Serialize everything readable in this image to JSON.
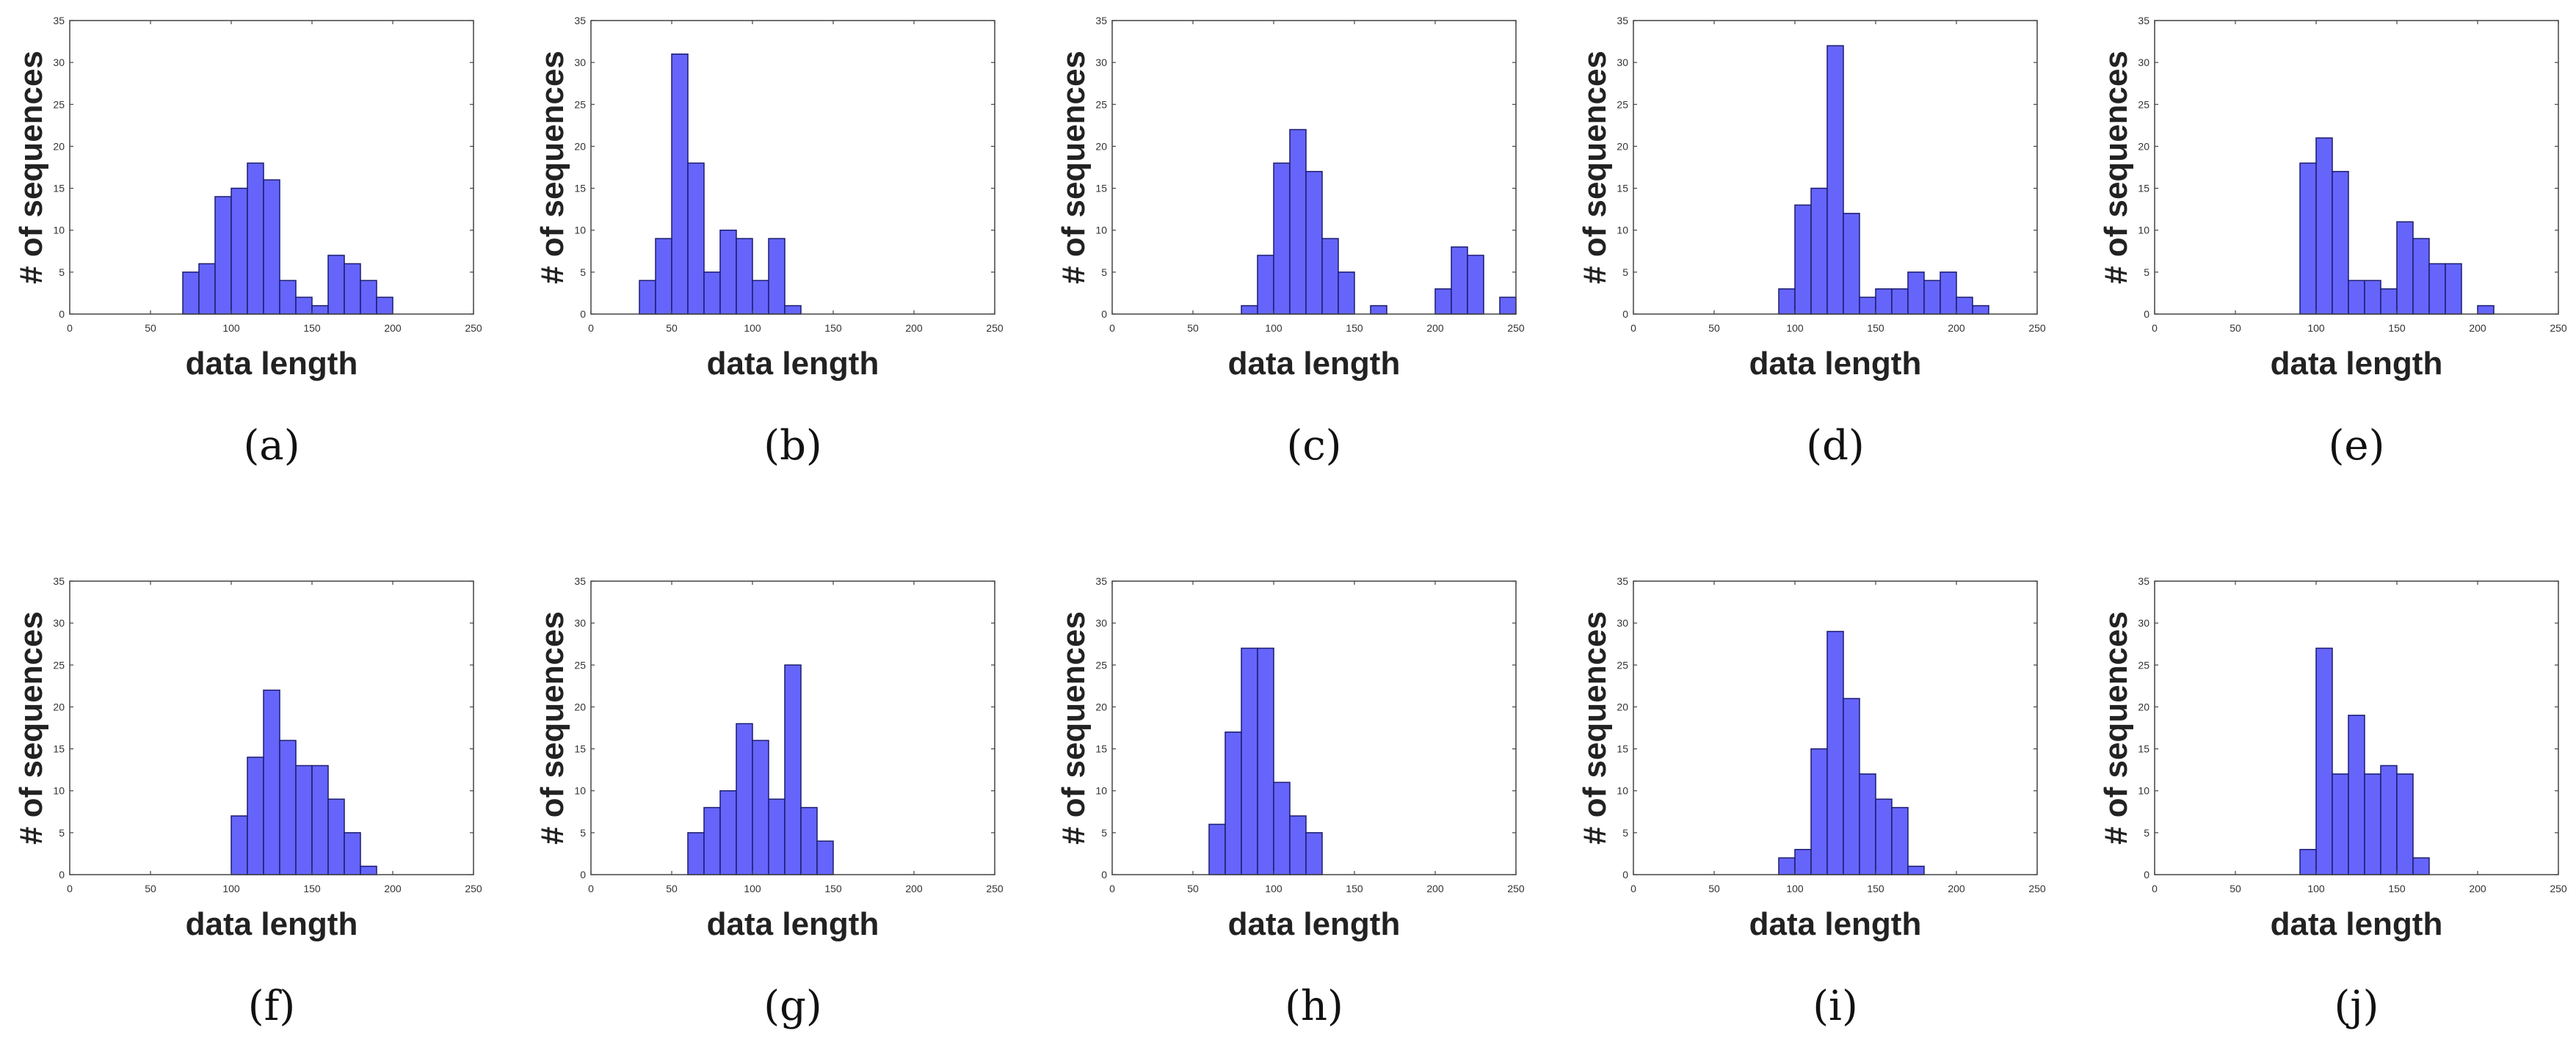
{
  "colors": {
    "bar_fill": "#6565fc",
    "bar_stroke": "#1c1c6e",
    "axes": "#444444"
  },
  "chart_data": [
    {
      "id": "a",
      "caption": "(a)",
      "type": "bar",
      "title": "",
      "xlabel": "data length",
      "ylabel": "# of sequences",
      "xlim": [
        0,
        250
      ],
      "ylim": [
        0,
        35
      ],
      "xticks": [
        0,
        50,
        100,
        150,
        200,
        250
      ],
      "yticks": [
        0,
        5,
        10,
        15,
        20,
        25,
        30,
        35
      ],
      "bin_width": 10,
      "bin_starts": [
        70,
        80,
        90,
        100,
        110,
        120,
        130,
        140,
        150,
        160,
        170,
        180,
        190
      ],
      "values": [
        5,
        6,
        14,
        15,
        18,
        16,
        4,
        2,
        1,
        7,
        6,
        4,
        2
      ]
    },
    {
      "id": "b",
      "caption": "(b)",
      "type": "bar",
      "title": "",
      "xlabel": "data length",
      "ylabel": "# of sequences",
      "xlim": [
        0,
        250
      ],
      "ylim": [
        0,
        35
      ],
      "xticks": [
        0,
        50,
        100,
        150,
        200,
        250
      ],
      "yticks": [
        0,
        5,
        10,
        15,
        20,
        25,
        30,
        35
      ],
      "bin_width": 10,
      "bin_starts": [
        30,
        40,
        50,
        60,
        70,
        80,
        90,
        100,
        110,
        120
      ],
      "values": [
        4,
        9,
        31,
        18,
        5,
        10,
        9,
        4,
        9,
        1
      ]
    },
    {
      "id": "c",
      "caption": "(c)",
      "type": "bar",
      "title": "",
      "xlabel": "data length",
      "ylabel": "# of sequences",
      "xlim": [
        0,
        250
      ],
      "ylim": [
        0,
        35
      ],
      "xticks": [
        0,
        50,
        100,
        150,
        200,
        250
      ],
      "yticks": [
        0,
        5,
        10,
        15,
        20,
        25,
        30,
        35
      ],
      "bin_width": 10,
      "bin_starts": [
        80,
        90,
        100,
        110,
        120,
        130,
        140,
        150,
        160,
        170,
        180,
        190,
        200,
        210,
        220,
        230,
        240
      ],
      "values": [
        1,
        7,
        18,
        22,
        17,
        9,
        5,
        0,
        1,
        0,
        0,
        0,
        3,
        8,
        7,
        0,
        2
      ]
    },
    {
      "id": "d",
      "caption": "(d)",
      "type": "bar",
      "title": "",
      "xlabel": "data length",
      "ylabel": "# of sequences",
      "xlim": [
        0,
        250
      ],
      "ylim": [
        0,
        35
      ],
      "xticks": [
        0,
        50,
        100,
        150,
        200,
        250
      ],
      "yticks": [
        0,
        5,
        10,
        15,
        20,
        25,
        30,
        35
      ],
      "bin_width": 10,
      "bin_starts": [
        90,
        100,
        110,
        120,
        130,
        140,
        150,
        160,
        170,
        180,
        190,
        200,
        210
      ],
      "values": [
        3,
        13,
        15,
        32,
        12,
        2,
        3,
        3,
        5,
        4,
        5,
        2,
        1
      ]
    },
    {
      "id": "e",
      "caption": "(e)",
      "type": "bar",
      "title": "",
      "xlabel": "data length",
      "ylabel": "# of sequences",
      "xlim": [
        0,
        250
      ],
      "ylim": [
        0,
        35
      ],
      "xticks": [
        0,
        50,
        100,
        150,
        200,
        250
      ],
      "yticks": [
        0,
        5,
        10,
        15,
        20,
        25,
        30,
        35
      ],
      "bin_width": 10,
      "bin_starts": [
        90,
        100,
        110,
        120,
        130,
        140,
        150,
        160,
        170,
        180,
        190,
        200
      ],
      "values": [
        18,
        21,
        17,
        4,
        4,
        3,
        11,
        9,
        6,
        6,
        0,
        1
      ]
    },
    {
      "id": "f",
      "caption": "(f)",
      "type": "bar",
      "title": "",
      "xlabel": "data length",
      "ylabel": "# of sequences",
      "xlim": [
        0,
        250
      ],
      "ylim": [
        0,
        35
      ],
      "xticks": [
        0,
        50,
        100,
        150,
        200,
        250
      ],
      "yticks": [
        0,
        5,
        10,
        15,
        20,
        25,
        30,
        35
      ],
      "bin_width": 10,
      "bin_starts": [
        100,
        110,
        120,
        130,
        140,
        150,
        160,
        170,
        180
      ],
      "values": [
        7,
        14,
        22,
        16,
        13,
        13,
        9,
        5,
        1
      ]
    },
    {
      "id": "g",
      "caption": "(g)",
      "type": "bar",
      "title": "",
      "xlabel": "data length",
      "ylabel": "# of sequences",
      "xlim": [
        0,
        250
      ],
      "ylim": [
        0,
        35
      ],
      "xticks": [
        0,
        50,
        100,
        150,
        200,
        250
      ],
      "yticks": [
        0,
        5,
        10,
        15,
        20,
        25,
        30,
        35
      ],
      "bin_width": 10,
      "bin_starts": [
        60,
        70,
        80,
        90,
        100,
        110,
        120,
        130,
        140
      ],
      "values": [
        5,
        8,
        10,
        18,
        16,
        9,
        25,
        8,
        4
      ]
    },
    {
      "id": "h",
      "caption": "(h)",
      "type": "bar",
      "title": "",
      "xlabel": "data length",
      "ylabel": "# of sequences",
      "xlim": [
        0,
        250
      ],
      "ylim": [
        0,
        35
      ],
      "xticks": [
        0,
        50,
        100,
        150,
        200,
        250
      ],
      "yticks": [
        0,
        5,
        10,
        15,
        20,
        25,
        30,
        35
      ],
      "bin_width": 10,
      "bin_starts": [
        60,
        70,
        80,
        90,
        100,
        110,
        120
      ],
      "values": [
        6,
        17,
        27,
        27,
        11,
        7,
        5
      ]
    },
    {
      "id": "i",
      "caption": "(i)",
      "type": "bar",
      "title": "",
      "xlabel": "data length",
      "ylabel": "# of sequences",
      "xlim": [
        0,
        250
      ],
      "ylim": [
        0,
        35
      ],
      "xticks": [
        0,
        50,
        100,
        150,
        200,
        250
      ],
      "yticks": [
        0,
        5,
        10,
        15,
        20,
        25,
        30,
        35
      ],
      "bin_width": 10,
      "bin_starts": [
        90,
        100,
        110,
        120,
        130,
        140,
        150,
        160,
        170
      ],
      "values": [
        2,
        3,
        15,
        29,
        21,
        12,
        9,
        8,
        1
      ]
    },
    {
      "id": "j",
      "caption": "(j)",
      "type": "bar",
      "title": "",
      "xlabel": "data length",
      "ylabel": "# of sequences",
      "xlim": [
        0,
        250
      ],
      "ylim": [
        0,
        35
      ],
      "xticks": [
        0,
        50,
        100,
        150,
        200,
        250
      ],
      "yticks": [
        0,
        5,
        10,
        15,
        20,
        25,
        30,
        35
      ],
      "bin_width": 10,
      "bin_starts": [
        90,
        100,
        110,
        120,
        130,
        140,
        150,
        160
      ],
      "values": [
        3,
        27,
        12,
        19,
        12,
        13,
        12,
        2
      ]
    }
  ]
}
